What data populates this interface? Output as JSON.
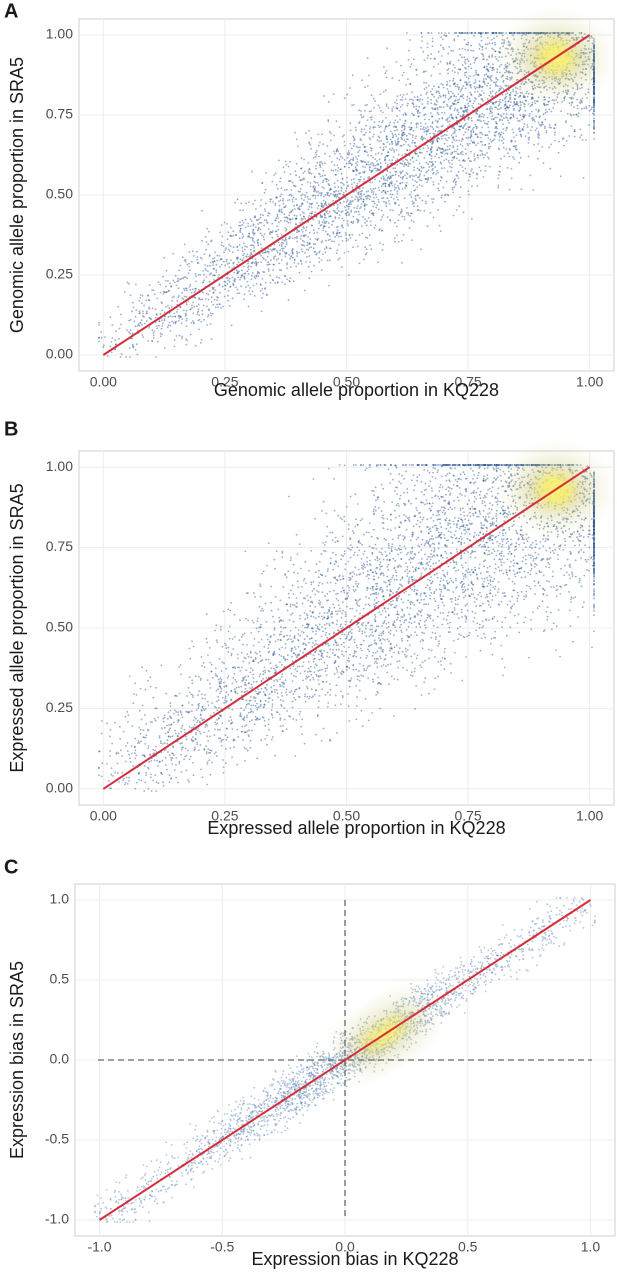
{
  "chart_data": [
    {
      "type": "scatter",
      "panel_label": "A",
      "x_label": "Genomic allele proportion in KQ228",
      "y_label": "Genomic allele proportion in SRA5",
      "xlim": [
        -0.05,
        1.05
      ],
      "ylim": [
        -0.05,
        1.05
      ],
      "xticks": [
        {
          "value": 0,
          "label": "0.00"
        },
        {
          "value": 0.25,
          "label": "0.25"
        },
        {
          "value": 0.5,
          "label": "0.50"
        },
        {
          "value": 0.75,
          "label": "0.75"
        },
        {
          "value": 1,
          "label": "1.00"
        }
      ],
      "yticks": [
        {
          "value": 0,
          "label": "0.00"
        },
        {
          "value": 0.25,
          "label": "0.25"
        },
        {
          "value": 0.5,
          "label": "0.50"
        },
        {
          "value": 0.75,
          "label": "0.75"
        },
        {
          "value": 1,
          "label": "1.00"
        }
      ],
      "grid": true,
      "point_color": "#1f4e8c",
      "reference_line": {
        "x": [
          0,
          1
        ],
        "y": [
          0,
          1
        ],
        "color": "#d62d3a"
      }
    },
    {
      "type": "scatter",
      "panel_label": "B",
      "x_label": "Expressed allele proportion in KQ228",
      "y_label": "Expressed allele proportion in SRA5",
      "xlim": [
        -0.05,
        1.05
      ],
      "ylim": [
        -0.05,
        1.05
      ],
      "xticks": [
        {
          "value": 0,
          "label": "0.00"
        },
        {
          "value": 0.25,
          "label": "0.25"
        },
        {
          "value": 0.5,
          "label": "0.50"
        },
        {
          "value": 0.75,
          "label": "0.75"
        },
        {
          "value": 1,
          "label": "1.00"
        }
      ],
      "yticks": [
        {
          "value": 0,
          "label": "0.00"
        },
        {
          "value": 0.25,
          "label": "0.25"
        },
        {
          "value": 0.5,
          "label": "0.50"
        },
        {
          "value": 0.75,
          "label": "0.75"
        },
        {
          "value": 1,
          "label": "1.00"
        }
      ],
      "grid": true,
      "point_color": "#1f4e8c",
      "reference_line": {
        "x": [
          0,
          1
        ],
        "y": [
          0,
          1
        ],
        "color": "#d62d3a"
      }
    },
    {
      "type": "scatter",
      "panel_label": "C",
      "x_label": "Expression bias in KQ228",
      "y_label": "Expression bias in SRA5",
      "xlim": [
        -1.1,
        1.1
      ],
      "ylim": [
        -1.1,
        1.1
      ],
      "xticks": [
        {
          "value": -1,
          "label": "-1.0"
        },
        {
          "value": -0.5,
          "label": "-0.5"
        },
        {
          "value": 0,
          "label": "0.0"
        },
        {
          "value": 0.5,
          "label": "0.5"
        },
        {
          "value": 1,
          "label": "1.0"
        }
      ],
      "yticks": [
        {
          "value": -1,
          "label": "-1.0"
        },
        {
          "value": -0.5,
          "label": "-0.5"
        },
        {
          "value": 0,
          "label": "0.0"
        },
        {
          "value": 0.5,
          "label": "0.5"
        },
        {
          "value": 1,
          "label": "1.0"
        }
      ],
      "grid": true,
      "point_color": "#5a82b4",
      "hlines": [
        0
      ],
      "vlines": [
        0
      ],
      "reference_line": {
        "x": [
          -1,
          1
        ],
        "y": [
          -1,
          1
        ],
        "color": "#d62d3a"
      }
    }
  ]
}
